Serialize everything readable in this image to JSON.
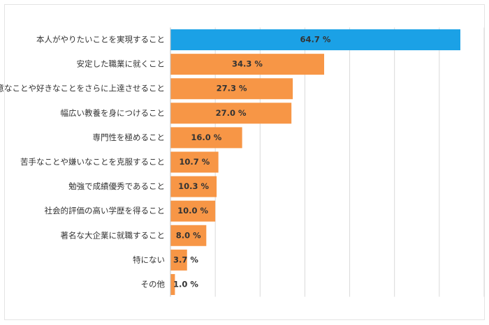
{
  "chart_data": {
    "type": "barh",
    "categories": [
      "本人がやりたいことを実現すること",
      "安定した職業に就くこと",
      "得意なことや好きなことをさらに上達させること",
      "幅広い教養を身につけること",
      "専門性を極めること",
      "苦手なことや嫌いなことを克服すること",
      "勉強で成績優秀であること",
      "社会的評価の高い学歴を得ること",
      "著名な大企業に就職すること",
      "特にない",
      "その他"
    ],
    "values": [
      64.7,
      34.3,
      27.3,
      27.0,
      16.0,
      10.7,
      10.3,
      10.0,
      8.0,
      3.7,
      1.0
    ],
    "value_labels": [
      "64.7 %",
      "34.3 %",
      "27.3 %",
      "27.0 %",
      "16.0 %",
      "10.7 %",
      "10.3 %",
      "10.0 %",
      "8.0 %",
      "3.7 %",
      "1.0 %"
    ],
    "colors": [
      "#1ba1e6",
      "#f79646",
      "#f79646",
      "#f79646",
      "#f79646",
      "#f79646",
      "#f79646",
      "#f79646",
      "#f79646",
      "#f79646",
      "#f79646"
    ],
    "xlim": [
      0,
      70
    ],
    "xticks": [
      0,
      10,
      20,
      30,
      40,
      50,
      60,
      70
    ],
    "grid": true
  }
}
